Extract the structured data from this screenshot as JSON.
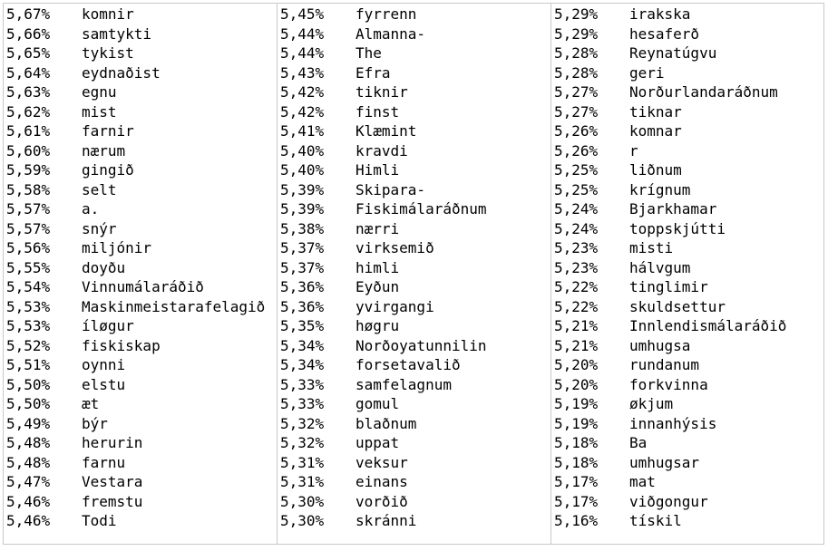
{
  "columns": [
    {
      "rows": [
        {
          "pct": "5,67%",
          "word": "komnir"
        },
        {
          "pct": "5,66%",
          "word": "samtykti"
        },
        {
          "pct": "5,65%",
          "word": "tykist"
        },
        {
          "pct": "5,64%",
          "word": "eydnaðist"
        },
        {
          "pct": "5,63%",
          "word": "egnu"
        },
        {
          "pct": "5,62%",
          "word": "mist"
        },
        {
          "pct": "5,61%",
          "word": "farnir"
        },
        {
          "pct": "5,60%",
          "word": "nærum"
        },
        {
          "pct": "5,59%",
          "word": "gingið"
        },
        {
          "pct": "5,58%",
          "word": "selt"
        },
        {
          "pct": "5,57%",
          "word": "a."
        },
        {
          "pct": "5,57%",
          "word": "snýr"
        },
        {
          "pct": "5,56%",
          "word": "miljónir"
        },
        {
          "pct": "5,55%",
          "word": "doyðu"
        },
        {
          "pct": "5,54%",
          "word": "Vinnumálaráðið"
        },
        {
          "pct": "5,53%",
          "word": "Maskinmeistarafelagið"
        },
        {
          "pct": "5,53%",
          "word": "íløgur"
        },
        {
          "pct": "5,52%",
          "word": "fiskiskap"
        },
        {
          "pct": "5,51%",
          "word": "oynni"
        },
        {
          "pct": "5,50%",
          "word": "elstu"
        },
        {
          "pct": "5,50%",
          "word": "æt"
        },
        {
          "pct": "5,49%",
          "word": "býr"
        },
        {
          "pct": "5,48%",
          "word": "herurin"
        },
        {
          "pct": "5,48%",
          "word": "farnu"
        },
        {
          "pct": "5,47%",
          "word": "Vestara"
        },
        {
          "pct": "5,46%",
          "word": "fremstu"
        },
        {
          "pct": "5,46%",
          "word": "Todi"
        }
      ]
    },
    {
      "rows": [
        {
          "pct": "5,45%",
          "word": "fyrrenn"
        },
        {
          "pct": "5,44%",
          "word": "Almanna-"
        },
        {
          "pct": "5,44%",
          "word": "The"
        },
        {
          "pct": "5,43%",
          "word": "Efra"
        },
        {
          "pct": "5,42%",
          "word": "tiknir"
        },
        {
          "pct": "5,42%",
          "word": "finst"
        },
        {
          "pct": "5,41%",
          "word": "Klæmint"
        },
        {
          "pct": "5,40%",
          "word": "kravdi"
        },
        {
          "pct": "5,40%",
          "word": "Himli"
        },
        {
          "pct": "5,39%",
          "word": "Skipara-"
        },
        {
          "pct": "5,39%",
          "word": "Fiskimálaráðnum"
        },
        {
          "pct": "5,38%",
          "word": "nærri"
        },
        {
          "pct": "5,37%",
          "word": "virksemið"
        },
        {
          "pct": "5,37%",
          "word": "himli"
        },
        {
          "pct": "5,36%",
          "word": "Eyðun"
        },
        {
          "pct": "5,36%",
          "word": "yvirgangi"
        },
        {
          "pct": "5,35%",
          "word": "høgru"
        },
        {
          "pct": "5,34%",
          "word": "Norðoyatunnilin"
        },
        {
          "pct": "5,34%",
          "word": "forsetavalið"
        },
        {
          "pct": "5,33%",
          "word": "samfelagnum"
        },
        {
          "pct": "5,33%",
          "word": "gomul"
        },
        {
          "pct": "5,32%",
          "word": "blaðnum"
        },
        {
          "pct": "5,32%",
          "word": "uppat"
        },
        {
          "pct": "5,31%",
          "word": "veksur"
        },
        {
          "pct": "5,31%",
          "word": "einans"
        },
        {
          "pct": "5,30%",
          "word": "vorðið"
        },
        {
          "pct": "5,30%",
          "word": "skránni"
        }
      ]
    },
    {
      "rows": [
        {
          "pct": "5,29%",
          "word": "irakska"
        },
        {
          "pct": "5,29%",
          "word": "hesaferð"
        },
        {
          "pct": "5,28%",
          "word": "Reynatúgvu"
        },
        {
          "pct": "5,28%",
          "word": "geri"
        },
        {
          "pct": "5,27%",
          "word": "Norðurlandaráðnum"
        },
        {
          "pct": "5,27%",
          "word": "tiknar"
        },
        {
          "pct": "5,26%",
          "word": "komnar"
        },
        {
          "pct": "5,26%",
          "word": "r"
        },
        {
          "pct": "5,25%",
          "word": "liðnum"
        },
        {
          "pct": "5,25%",
          "word": "krígnum"
        },
        {
          "pct": "5,24%",
          "word": "Bjarkhamar"
        },
        {
          "pct": "5,24%",
          "word": "toppskjútti"
        },
        {
          "pct": "5,23%",
          "word": "misti"
        },
        {
          "pct": "5,23%",
          "word": "hálvgum"
        },
        {
          "pct": "5,22%",
          "word": "tinglimir"
        },
        {
          "pct": "5,22%",
          "word": "skuldsettur"
        },
        {
          "pct": "5,21%",
          "word": "Innlendismálaráðið"
        },
        {
          "pct": "5,21%",
          "word": "umhugsa"
        },
        {
          "pct": "5,20%",
          "word": "rundanum"
        },
        {
          "pct": "5,20%",
          "word": "forkvinna"
        },
        {
          "pct": "5,19%",
          "word": "økjum"
        },
        {
          "pct": "5,19%",
          "word": "innanhýsis"
        },
        {
          "pct": "5,18%",
          "word": "Ba"
        },
        {
          "pct": "5,18%",
          "word": "umhugsar"
        },
        {
          "pct": "5,17%",
          "word": "mat"
        },
        {
          "pct": "5,17%",
          "word": "viðgongur"
        },
        {
          "pct": "5,16%",
          "word": "tískil"
        }
      ]
    }
  ]
}
